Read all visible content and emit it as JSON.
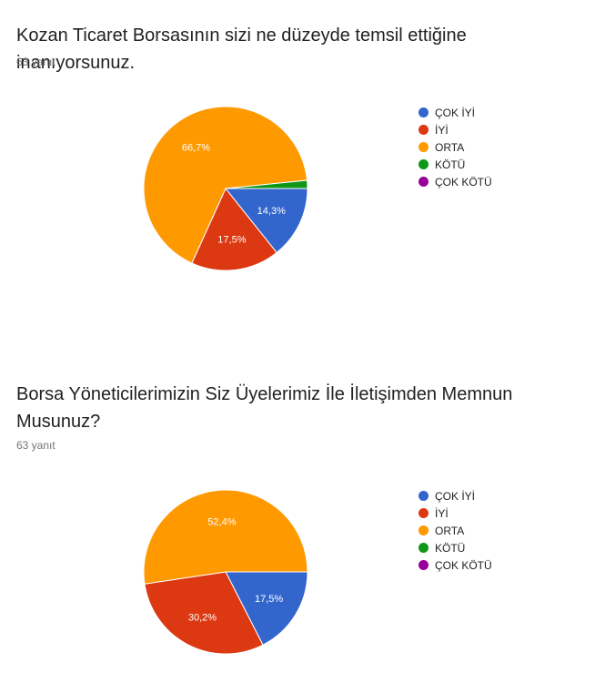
{
  "questions": [
    {
      "title": "Kozan Ticaret Borsasının sizi ne düzeyde temsil ettiğine inanıyorsunuz.",
      "responses": "63 yanıt"
    },
    {
      "title": "Borsa Yöneticilerimizin Siz Üyelerimiz İle İletişimden Memnun Musunuz?",
      "responses": "63 yanıt"
    }
  ],
  "chart_data": [
    {
      "type": "pie",
      "title": "Kozan Ticaret Borsasının sizi ne düzeyde temsil ettiğine inanıyorsunuz.",
      "legend_position": "right",
      "categories": [
        "ÇOK İYİ",
        "İYİ",
        "ORTA",
        "KÖTÜ",
        "ÇOK KÖTÜ"
      ],
      "values": [
        14.3,
        17.5,
        66.7,
        1.6,
        0
      ],
      "labels": [
        "14,3%",
        "17,5%",
        "66,7%",
        "",
        ""
      ],
      "colors": [
        "#3366cc",
        "#dc3912",
        "#ff9900",
        "#109618",
        "#990099"
      ]
    },
    {
      "type": "pie",
      "title": "Borsa Yöneticilerimizin Siz Üyelerimiz İle İletişimden Memnun Musunuz?",
      "legend_position": "right",
      "categories": [
        "ÇOK İYİ",
        "İYİ",
        "ORTA",
        "KÖTÜ",
        "ÇOK KÖTÜ"
      ],
      "values": [
        17.5,
        30.2,
        52.4,
        0,
        0
      ],
      "labels": [
        "17,5%",
        "30,2%",
        "52,4%",
        "",
        ""
      ],
      "colors": [
        "#3366cc",
        "#dc3912",
        "#ff9900",
        "#109618",
        "#990099"
      ]
    }
  ]
}
